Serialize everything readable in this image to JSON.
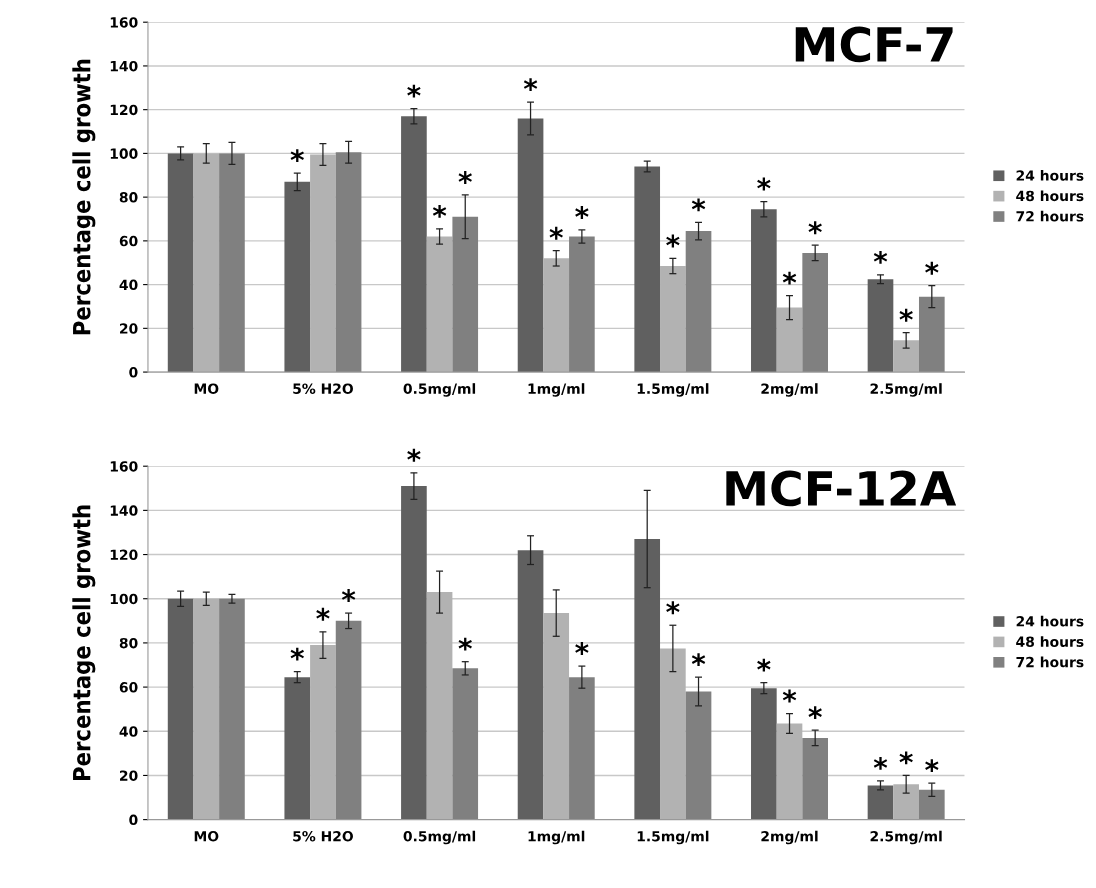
{
  "chart_data": [
    {
      "type": "bar",
      "title": "MCF-7",
      "ylabel": "Percentage cell growth",
      "categories": [
        "MO",
        "5% H2O",
        "0.5mg/ml",
        "1mg/ml",
        "1.5mg/ml",
        "2mg/ml",
        "2.5mg/ml"
      ],
      "series": [
        {
          "name": "24 hours",
          "color": "#606060",
          "values": [
            100,
            87,
            117,
            116,
            94,
            74.5,
            42.5
          ],
          "errors": [
            3,
            4,
            3.5,
            7.5,
            2.5,
            3.5,
            2
          ],
          "value_labels": [
            null,
            "*",
            "*",
            "*",
            null,
            "*",
            "*"
          ]
        },
        {
          "name": "48 hours",
          "color": "#b2b2b2",
          "values": [
            100,
            99.5,
            62,
            52,
            48.5,
            29.5,
            14.5
          ],
          "errors": [
            4.5,
            5,
            3.5,
            3.5,
            3.5,
            5.5,
            3.5
          ],
          "value_labels": [
            null,
            null,
            "*",
            "*",
            "*",
            "*",
            "*"
          ]
        },
        {
          "name": "72 hours",
          "color": "#808080",
          "values": [
            100,
            100.5,
            71,
            62,
            64.5,
            54.5,
            34.5
          ],
          "errors": [
            5,
            5,
            10,
            3,
            4,
            3.5,
            5
          ],
          "value_labels": [
            null,
            null,
            "*",
            "*",
            "*",
            "*",
            "*"
          ]
        }
      ],
      "ylim": [
        0,
        160
      ],
      "yticks": [
        0,
        20,
        40,
        60,
        80,
        100,
        120,
        140,
        160
      ],
      "grid": "y",
      "legend": "right"
    },
    {
      "type": "bar",
      "title": "MCF-12A",
      "ylabel": "Percentage cell growth",
      "categories": [
        "MO",
        "5% H2O",
        "0.5mg/ml",
        "1mg/ml",
        "1.5mg/ml",
        "2mg/ml",
        "2.5mg/ml"
      ],
      "series": [
        {
          "name": "24 hours",
          "color": "#606060",
          "values": [
            100,
            64.5,
            151,
            122,
            127,
            59.5,
            15.5
          ],
          "errors": [
            3.5,
            2.5,
            6,
            6.5,
            22,
            2.5,
            2
          ],
          "value_labels": [
            null,
            "*",
            "*",
            null,
            null,
            "*",
            "*"
          ]
        },
        {
          "name": "48 hours",
          "color": "#b2b2b2",
          "values": [
            100,
            79,
            103,
            93.5,
            77.5,
            43.5,
            16
          ],
          "errors": [
            3,
            6,
            9.5,
            10.5,
            10.5,
            4.5,
            4
          ],
          "value_labels": [
            null,
            "*",
            null,
            null,
            "*",
            "*",
            "*"
          ]
        },
        {
          "name": "72 hours",
          "color": "#808080",
          "values": [
            100,
            90,
            68.5,
            64.5,
            58,
            37,
            13.5
          ],
          "errors": [
            2,
            3.5,
            3,
            5,
            6.5,
            3.5,
            3
          ],
          "value_labels": [
            null,
            "*",
            "*",
            "*",
            "*",
            "*",
            "*"
          ]
        }
      ],
      "ylim": [
        0,
        160
      ],
      "yticks": [
        0,
        20,
        40,
        60,
        80,
        100,
        120,
        140,
        160
      ],
      "grid": "y",
      "legend": "right"
    }
  ]
}
